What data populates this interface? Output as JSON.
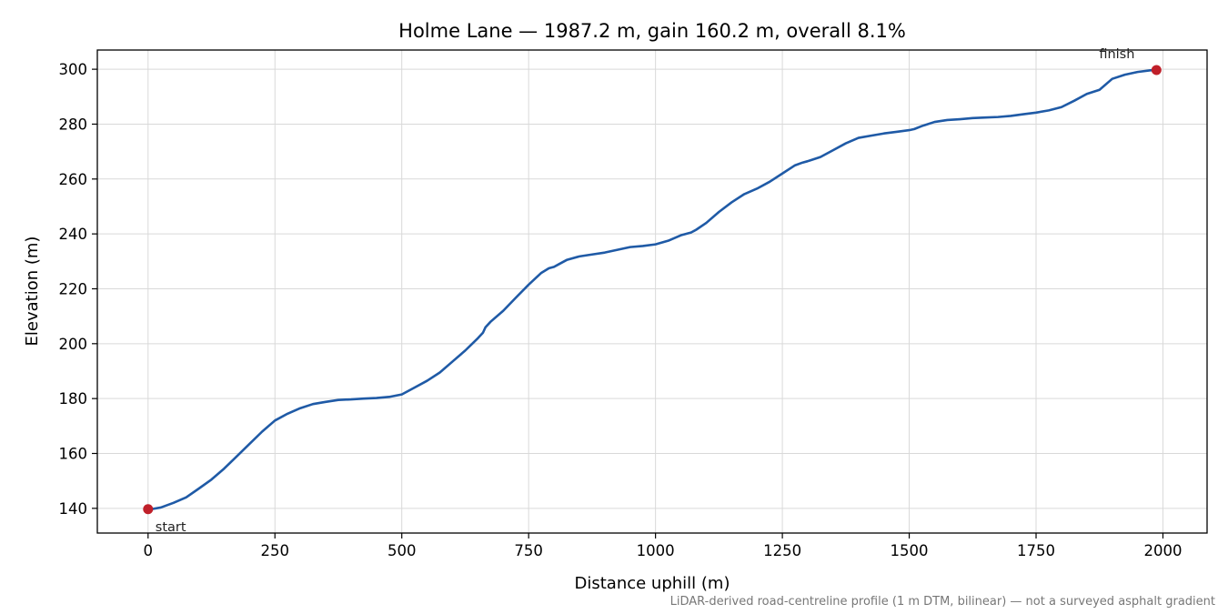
{
  "chart_data": {
    "type": "line",
    "title": "Holme Lane — 1987.2 m, gain 160.2 m, overall 8.1%",
    "xlabel": "Distance uphill (m)",
    "ylabel": "Elevation (m)",
    "xlim": [
      -100,
      2087
    ],
    "ylim": [
      131,
      307
    ],
    "xticks": [
      0,
      250,
      500,
      750,
      1000,
      1250,
      1500,
      1750,
      2000
    ],
    "xtick_labels": [
      "0",
      "250",
      "500",
      "750",
      "1000",
      "1250",
      "1500",
      "1750",
      "2000"
    ],
    "yticks": [
      140,
      160,
      180,
      200,
      220,
      240,
      260,
      280,
      300
    ],
    "ytick_labels": [
      "140",
      "160",
      "180",
      "200",
      "220",
      "240",
      "260",
      "280",
      "300"
    ],
    "grid": true,
    "line_color": "#1f5aa6",
    "marker_color": "#c0202a",
    "series": [
      {
        "x": [
          0,
          25,
          50,
          75,
          100,
          125,
          150,
          175,
          200,
          225,
          250,
          275,
          300,
          325,
          350,
          375,
          400,
          425,
          450,
          475,
          500,
          525,
          550,
          575,
          600,
          625,
          650,
          660,
          665,
          675,
          700,
          725,
          750,
          775,
          790,
          800,
          810,
          825,
          850,
          875,
          900,
          925,
          950,
          975,
          1000,
          1025,
          1050,
          1070,
          1080,
          1100,
          1125,
          1150,
          1175,
          1200,
          1225,
          1250,
          1275,
          1290,
          1300,
          1325,
          1350,
          1375,
          1400,
          1425,
          1450,
          1475,
          1500,
          1510,
          1525,
          1550,
          1575,
          1600,
          1625,
          1650,
          1675,
          1700,
          1725,
          1750,
          1775,
          1800,
          1825,
          1850,
          1875,
          1900,
          1925,
          1950,
          1975,
          1987.2
        ],
        "y": [
          139.5,
          140.3,
          142.0,
          144.0,
          147.2,
          150.5,
          154.5,
          159.0,
          163.5,
          168.0,
          172.0,
          174.5,
          176.5,
          178.0,
          178.8,
          179.5,
          179.7,
          180.0,
          180.2,
          180.6,
          181.5,
          184.0,
          186.5,
          189.5,
          193.5,
          197.5,
          202.0,
          204.0,
          206.0,
          208.0,
          212.0,
          216.8,
          221.5,
          225.8,
          227.5,
          228.0,
          229.0,
          230.5,
          231.8,
          232.5,
          233.2,
          234.2,
          235.2,
          235.6,
          236.2,
          237.5,
          239.5,
          240.5,
          241.5,
          244.0,
          248.0,
          251.5,
          254.5,
          256.5,
          259.0,
          262.0,
          265.0,
          266.0,
          266.5,
          268.0,
          270.5,
          273.0,
          275.0,
          275.8,
          276.6,
          277.2,
          277.8,
          278.2,
          279.3,
          280.8,
          281.5,
          281.8,
          282.2,
          282.4,
          282.6,
          283.0,
          283.6,
          284.2,
          285.0,
          286.2,
          288.5,
          291.0,
          292.5,
          296.5,
          298.0,
          299.0,
          299.6,
          299.7
        ]
      }
    ],
    "annotations": [
      {
        "text": "start",
        "x": 0,
        "y": 139.7
      },
      {
        "text": "finish",
        "x": 1987.2,
        "y": 299.7
      }
    ],
    "footnote": "LiDAR-derived road-centreline profile (1 m DTM, bilinear) — not a surveyed asphalt gradient"
  }
}
